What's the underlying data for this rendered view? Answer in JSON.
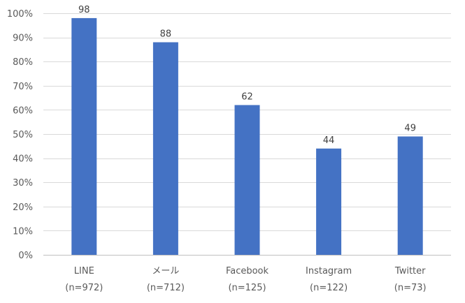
{
  "chart_data": {
    "type": "bar",
    "categories": [
      "LINE",
      "メール",
      "Facebook",
      "Instagram",
      "Twitter"
    ],
    "category_notes": [
      "(n=972)",
      "(n=712)",
      "(n=125)",
      "(n=122)",
      "(n=73)"
    ],
    "values": [
      98,
      88,
      62,
      44,
      49
    ],
    "data_labels": [
      "98",
      "88",
      "62",
      "44",
      "49"
    ],
    "ylim": [
      0,
      100
    ],
    "yticks": [
      0,
      10,
      20,
      30,
      40,
      50,
      60,
      70,
      80,
      90,
      100
    ],
    "ytick_labels": [
      "0%",
      "10%",
      "20%",
      "30%",
      "40%",
      "50%",
      "60%",
      "70%",
      "80%",
      "90%",
      "100%"
    ],
    "grid": true,
    "legend": "none",
    "colors": {
      "bar": "#4472c4"
    }
  }
}
